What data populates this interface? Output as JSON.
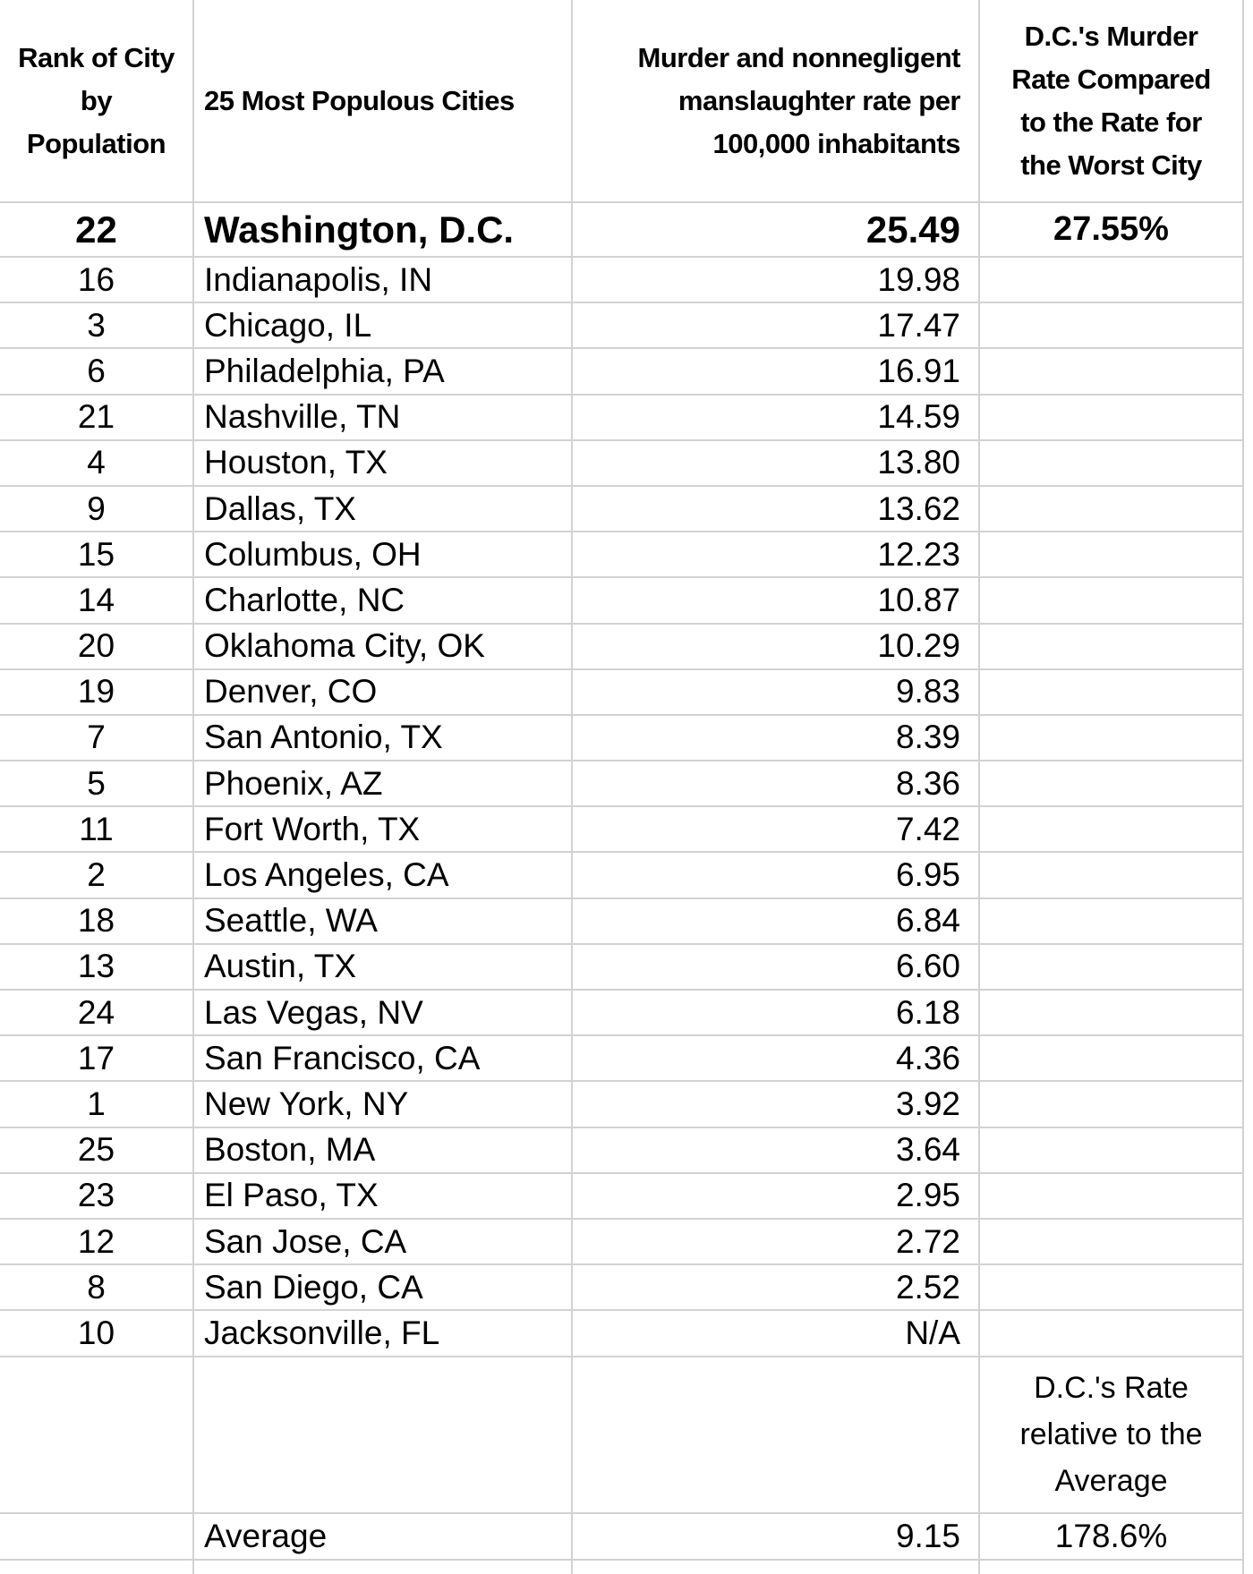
{
  "colors": {
    "grid": "#d2d2d2",
    "text": "#000000",
    "background": "#ffffff"
  },
  "table": {
    "headers": {
      "rank_lines": [
        "Rank of City",
        "by",
        "Population"
      ],
      "cities": "25 Most Populous Cities",
      "rate_lines": [
        "Murder and nonnegligent",
        "manslaughter rate per",
        "100,000 inhabitants"
      ],
      "comparison_lines": [
        "D.C.'s Murder",
        "Rate Compared",
        "to the Rate for",
        "the Worst City"
      ]
    },
    "rows": [
      {
        "rank": "22",
        "city": "Washington, D.C.",
        "rate": "25.49",
        "note": "27.55%",
        "emphasis": true
      },
      {
        "rank": "16",
        "city": "Indianapolis, IN",
        "rate": "19.98",
        "note": ""
      },
      {
        "rank": "3",
        "city": "Chicago, IL",
        "rate": "17.47",
        "note": ""
      },
      {
        "rank": "6",
        "city": "Philadelphia, PA",
        "rate": "16.91",
        "note": ""
      },
      {
        "rank": "21",
        "city": "Nashville, TN",
        "rate": "14.59",
        "note": ""
      },
      {
        "rank": "4",
        "city": "Houston, TX",
        "rate": "13.80",
        "note": ""
      },
      {
        "rank": "9",
        "city": "Dallas, TX",
        "rate": "13.62",
        "note": ""
      },
      {
        "rank": "15",
        "city": "Columbus, OH",
        "rate": "12.23",
        "note": ""
      },
      {
        "rank": "14",
        "city": "Charlotte, NC",
        "rate": "10.87",
        "note": ""
      },
      {
        "rank": "20",
        "city": "Oklahoma City, OK",
        "rate": "10.29",
        "note": ""
      },
      {
        "rank": "19",
        "city": "Denver, CO",
        "rate": "9.83",
        "note": ""
      },
      {
        "rank": "7",
        "city": "San Antonio, TX",
        "rate": "8.39",
        "note": ""
      },
      {
        "rank": "5",
        "city": "Phoenix, AZ",
        "rate": "8.36",
        "note": ""
      },
      {
        "rank": "11",
        "city": "Fort Worth, TX",
        "rate": "7.42",
        "note": ""
      },
      {
        "rank": "2",
        "city": "Los Angeles, CA",
        "rate": "6.95",
        "note": ""
      },
      {
        "rank": "18",
        "city": "Seattle, WA",
        "rate": "6.84",
        "note": ""
      },
      {
        "rank": "13",
        "city": "Austin, TX",
        "rate": "6.60",
        "note": ""
      },
      {
        "rank": "24",
        "city": "Las Vegas, NV",
        "rate": "6.18",
        "note": ""
      },
      {
        "rank": "17",
        "city": "San Francisco, CA",
        "rate": "4.36",
        "note": ""
      },
      {
        "rank": "1",
        "city": "New York, NY",
        "rate": "3.92",
        "note": ""
      },
      {
        "rank": "25",
        "city": "Boston, MA",
        "rate": "3.64",
        "note": ""
      },
      {
        "rank": "23",
        "city": "El Paso, TX",
        "rate": "2.95",
        "note": ""
      },
      {
        "rank": "12",
        "city": "San Jose, CA",
        "rate": "2.72",
        "note": ""
      },
      {
        "rank": "8",
        "city": "San Diego, CA",
        "rate": "2.52",
        "note": ""
      },
      {
        "rank": "10",
        "city": "Jacksonville, FL",
        "rate": "N/A",
        "note": ""
      }
    ],
    "footer": {
      "relative_note_lines": [
        "D.C.'s Rate",
        "relative to the",
        "Average"
      ],
      "average_label": "Average",
      "average_rate": "9.15",
      "average_note": "178.6%"
    }
  }
}
